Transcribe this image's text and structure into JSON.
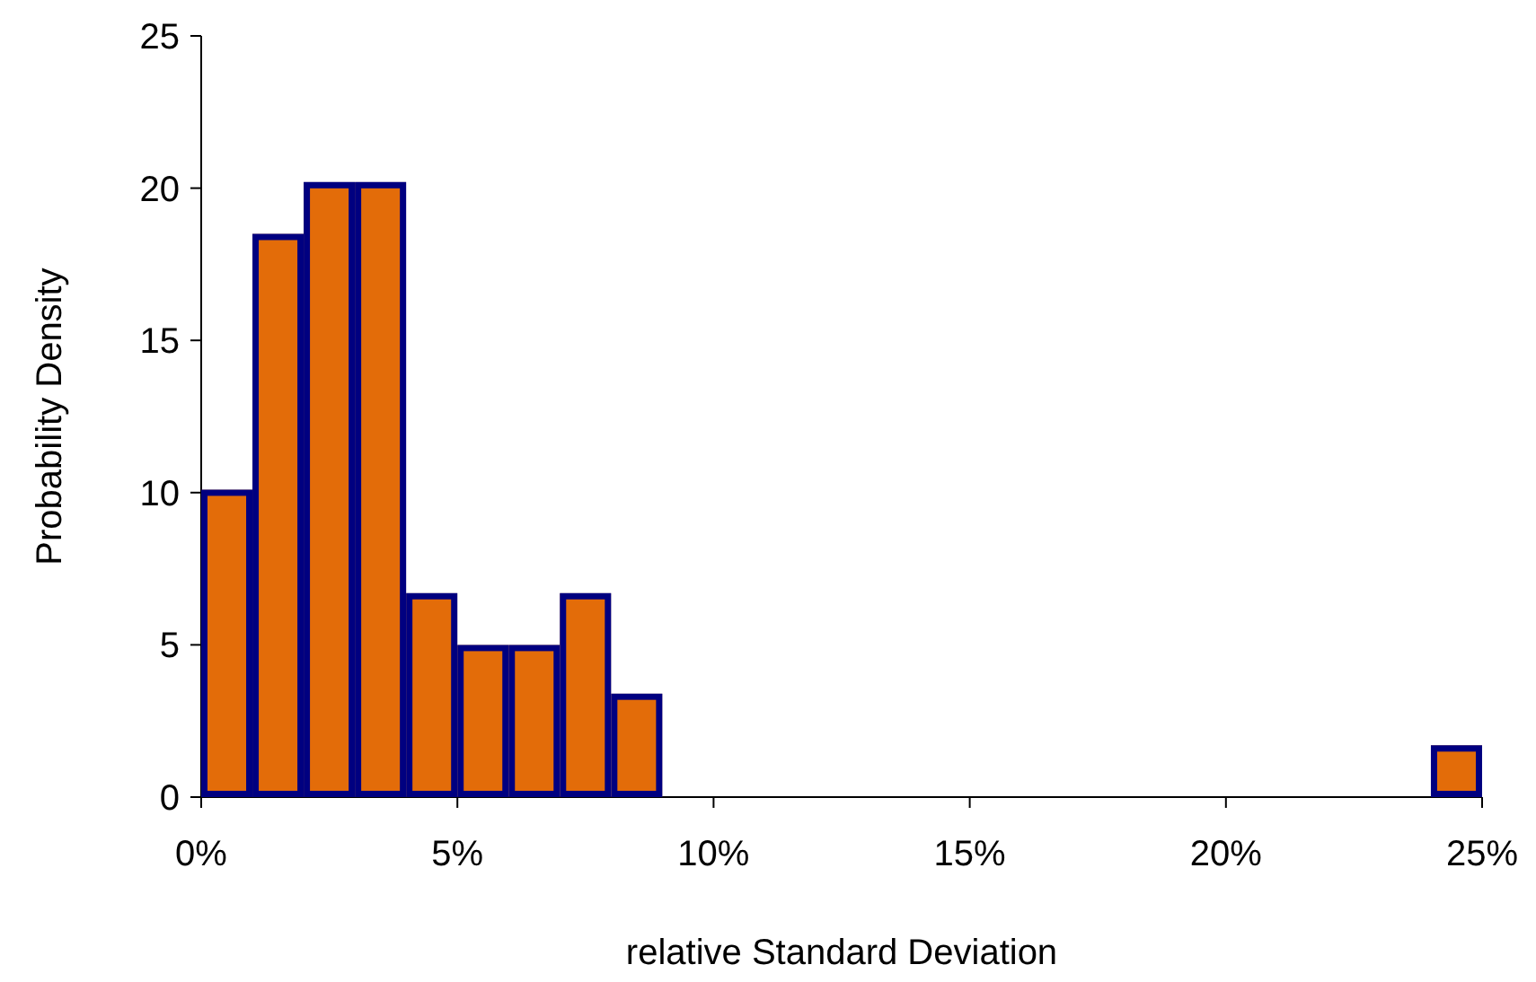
{
  "chart_data": {
    "type": "histogram",
    "xlabel": "relative Standard Deviation",
    "ylabel": "Probability Density",
    "bins": [
      0,
      1,
      2,
      3,
      4,
      5,
      6,
      7,
      8,
      9,
      10,
      11,
      12,
      13,
      14,
      15,
      16,
      17,
      18,
      19,
      20,
      21,
      22,
      23,
      24,
      25
    ],
    "values": [
      10.1,
      18.5,
      20.2,
      20.2,
      6.7,
      5,
      5,
      6.7,
      3.4,
      0,
      0,
      0,
      0,
      0,
      0,
      0,
      0,
      0,
      0,
      0,
      0,
      0,
      0,
      0,
      1.7
    ],
    "color": "#e36c09",
    "xlim": [
      0,
      25
    ],
    "xticks": [
      {
        "value": 0,
        "label": "0%"
      },
      {
        "value": 5,
        "label": "5%"
      },
      {
        "value": 10,
        "label": "10%"
      },
      {
        "value": 15,
        "label": "15%"
      },
      {
        "value": 20,
        "label": "20%"
      },
      {
        "value": 25,
        "label": "25%"
      }
    ],
    "ylim": [
      0,
      25
    ],
    "yticks": [
      0,
      5,
      10,
      15,
      20,
      25
    ],
    "grid": false
  }
}
